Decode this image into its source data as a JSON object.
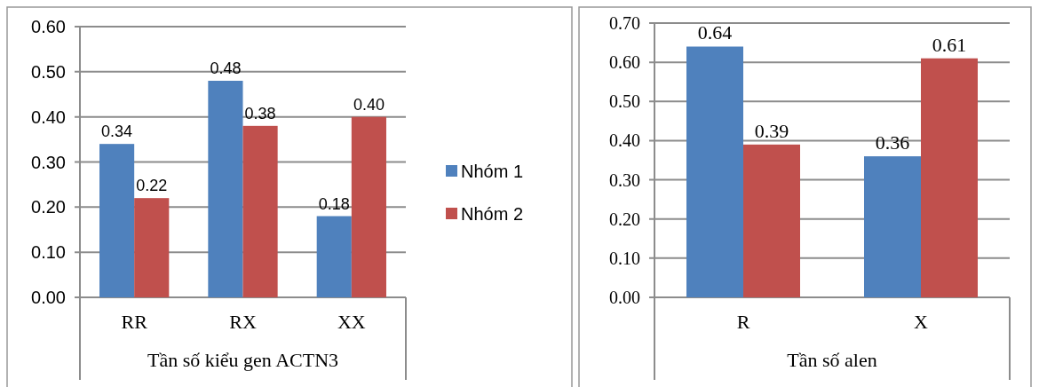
{
  "chart_data": [
    {
      "type": "bar",
      "xlabel": "Tần số kiểu gen ACTN3",
      "categories": [
        "RR",
        "RX",
        "XX"
      ],
      "ylim": [
        0,
        0.6
      ],
      "yticks": [
        {
          "value": 0,
          "label": "0.00"
        },
        {
          "value": 0.1,
          "label": "0.10"
        },
        {
          "value": 0.2,
          "label": "0.20"
        },
        {
          "value": 0.3,
          "label": "0.30"
        },
        {
          "value": 0.4,
          "label": "0.40"
        },
        {
          "value": 0.5,
          "label": "0.50"
        },
        {
          "value": 0.6,
          "label": "0.60"
        }
      ],
      "grid": "y",
      "legend": "right",
      "series": [
        {
          "name": "Nhóm 1",
          "color": "#4f81bd",
          "values": [
            0.34,
            0.48,
            0.18
          ],
          "value_labels": [
            "0.34",
            "0.48",
            "0.18"
          ]
        },
        {
          "name": "Nhóm 2",
          "color": "#c0504d",
          "values": [
            0.22,
            0.38,
            0.4
          ],
          "value_labels": [
            "0.22",
            "0.38",
            "0.40"
          ]
        }
      ]
    },
    {
      "type": "bar",
      "xlabel": "Tần số alen",
      "categories": [
        "R",
        "X"
      ],
      "ylim": [
        0,
        0.7
      ],
      "yticks": [
        {
          "value": 0,
          "label": "0.00"
        },
        {
          "value": 0.1,
          "label": "0.10"
        },
        {
          "value": 0.2,
          "label": "0.20"
        },
        {
          "value": 0.3,
          "label": "0.30"
        },
        {
          "value": 0.4,
          "label": "0.40"
        },
        {
          "value": 0.5,
          "label": "0.50"
        },
        {
          "value": 0.6,
          "label": "0.60"
        },
        {
          "value": 0.7,
          "label": "0.70"
        }
      ],
      "grid": "y",
      "data_labels": true,
      "series": [
        {
          "color": "#4f81bd",
          "values": [
            0.64,
            0.36
          ]
        },
        {
          "color": "#c0504d",
          "values": [
            0.39,
            0.61
          ]
        }
      ]
    }
  ]
}
